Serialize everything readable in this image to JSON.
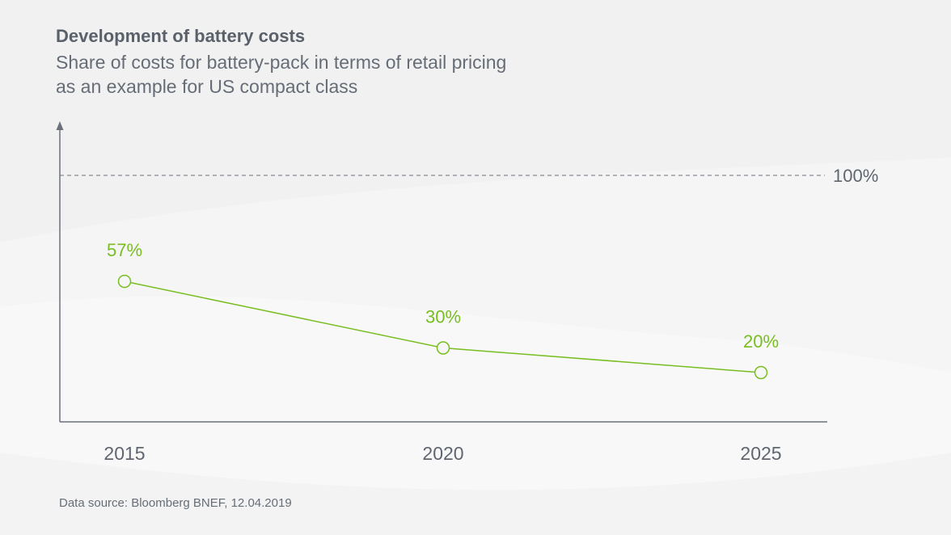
{
  "chart_data": {
    "type": "line",
    "title": "Development of battery costs",
    "subtitle_lines": [
      "Share of costs for battery-pack in terms of retail pricing",
      "as an example for US compact class"
    ],
    "categories": [
      "2015",
      "2020",
      "2025"
    ],
    "series": [
      {
        "name": "Battery-pack share of retail price",
        "values": [
          57,
          30,
          20
        ],
        "labels": [
          "57%",
          "30%",
          "20%"
        ]
      }
    ],
    "reference_line": {
      "value": 100,
      "label": "100%",
      "style": "dashed"
    },
    "ylim": [
      0,
      115
    ],
    "xlabel": "",
    "ylabel": "",
    "grid": false,
    "source": "Data source: Bloomberg BNEF, 12.04.2019"
  },
  "colors": {
    "series": "#78be20",
    "axis": "#6b717a",
    "background": "#f1f1f2"
  }
}
